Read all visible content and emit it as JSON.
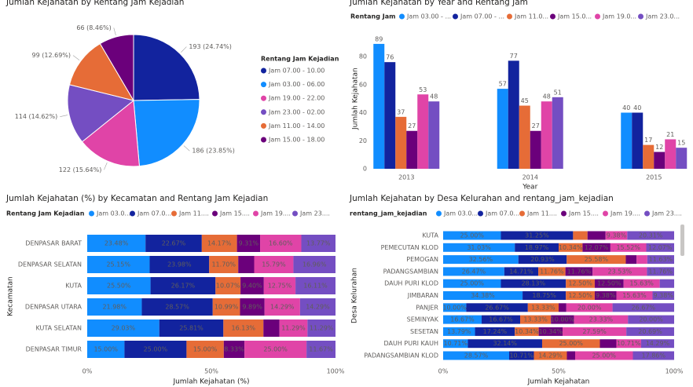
{
  "chart_data": [
    {
      "type": "pie",
      "title": "Jumlah Kejahatan by Rentang Jam Kejadian",
      "legend_title": "Rentang Jam Kejadian",
      "categories": [
        "Jam 07.00 - 10.00",
        "Jam 03.00 - 06.00",
        "Jam 19.00 - 22.00",
        "Jam 23.00 - 02.00",
        "Jam 11.00 - 14.00",
        "Jam 15.00 - 18.00"
      ],
      "values": [
        193,
        186,
        122,
        114,
        99,
        66
      ],
      "value_labels": [
        "193 (24.74%)",
        "186 (23.85%)",
        "122 (15.64%)",
        "114 (14.62%)",
        "99 (12.69%)",
        "66 (8.46%)"
      ],
      "colors": [
        "#12239e",
        "#118dff",
        "#e044a7",
        "#744ec2",
        "#e66c37",
        "#6b007b"
      ],
      "legend": "right"
    },
    {
      "type": "bar",
      "title": "Jumlah Kejahatan by Year and Rentang Jam",
      "legend_title": "Rentang Jam",
      "x_label": "Year",
      "y_label": "Jumlah Kejahatan",
      "categories": [
        "2013",
        "2014",
        "2015"
      ],
      "series": [
        {
          "name": "Jam 03.00 - ...",
          "color": "#118dff",
          "values": [
            89,
            57,
            40
          ]
        },
        {
          "name": "Jam 07.00 - ...",
          "color": "#12239e",
          "values": [
            76,
            77,
            40
          ]
        },
        {
          "name": "Jam 11.0...",
          "color": "#e66c37",
          "values": [
            37,
            45,
            17
          ]
        },
        {
          "name": "Jam 15.0...",
          "color": "#6b007b",
          "values": [
            27,
            27,
            12
          ]
        },
        {
          "name": "Jam 19.0...",
          "color": "#e044a7",
          "values": [
            53,
            48,
            21
          ]
        },
        {
          "name": "Jam 23.0...",
          "color": "#744ec2",
          "values": [
            48,
            51,
            15
          ]
        }
      ],
      "ylim": [
        0,
        100
      ],
      "yticks": [
        0,
        20,
        40,
        60,
        80
      ],
      "legend": "top"
    },
    {
      "type": "stacked_bar",
      "title": "Jumlah Kejahatan (%) by Kecamatan and Rentang Jam Kejadian",
      "legend_title": "Rentang Jam Kejadian",
      "x_label": "Jumlah Kejahatan (%)",
      "y_label": "Kecamatan",
      "categories": [
        "DENPASAR BARAT",
        "DENPASAR SELATAN",
        "KUTA",
        "DENPASAR UTARA",
        "KUTA SELATAN",
        "DENPASAR TIMUR"
      ],
      "series": [
        {
          "name": "Jam 03.0...",
          "color": "#118dff",
          "values": [
            23.48,
            25.15,
            25.5,
            21.98,
            29.03,
            15.0
          ],
          "value_labels": [
            "23.48%",
            "25.15%",
            "25.50%",
            "21.98%",
            "29.03%",
            "15.00%"
          ]
        },
        {
          "name": "Jam 07.0...",
          "color": "#12239e",
          "values": [
            22.67,
            23.98,
            26.17,
            28.57,
            25.81,
            25.0
          ],
          "value_labels": [
            "22.67%",
            "23.98%",
            "26.17%",
            "28.57%",
            "25.81%",
            "25.00%"
          ]
        },
        {
          "name": "Jam 11....",
          "color": "#e66c37",
          "values": [
            14.17,
            11.7,
            10.07,
            10.99,
            16.13,
            15.0
          ],
          "value_labels": [
            "14.17%",
            "11.70%",
            "10.07%",
            "10.99%",
            "16.13%",
            "15.00%"
          ]
        },
        {
          "name": "Jam 15....",
          "color": "#6b007b",
          "values": [
            9.31,
            6.42,
            9.4,
            9.89,
            6.45,
            8.33
          ],
          "value_labels": [
            "9.31%",
            null,
            "9.40%",
            "9.89%",
            null,
            "8.33%"
          ]
        },
        {
          "name": "Jam 19....",
          "color": "#e044a7",
          "values": [
            16.6,
            15.79,
            12.75,
            14.29,
            11.29,
            25.0
          ],
          "value_labels": [
            "16.60%",
            "15.79%",
            "12.75%",
            "14.29%",
            "11.29%",
            "25.00%"
          ]
        },
        {
          "name": "Jam 23....",
          "color": "#744ec2",
          "values": [
            13.77,
            16.96,
            16.11,
            14.29,
            11.29,
            11.67
          ],
          "value_labels": [
            "13.77%",
            "16.96%",
            "16.11%",
            "14.29%",
            "11.29%",
            "11.67%"
          ]
        }
      ],
      "xlim": [
        0,
        100
      ],
      "xticks": [
        {
          "value": 0,
          "label": "0%"
        },
        {
          "value": 50,
          "label": "50%"
        },
        {
          "value": 100,
          "label": "100%"
        }
      ],
      "legend": "top"
    },
    {
      "type": "stacked_bar",
      "title": "Jumlah Kejahatan by Desa Kelurahan and rentang_jam_kejadian",
      "legend_title": "rentang_jam_kejadian",
      "x_label": "Jumlah Kejahatan",
      "y_label": "Desa Kelurahan",
      "categories": [
        "KUTA",
        "PEMECUTAN KLOD",
        "PEMOGAN",
        "PADANGSAMBIAN",
        "DAUH PURI KLOD",
        "JIMBARAN",
        "PANJER",
        "SEMINYAK",
        "SESETAN",
        "DAUH PURI KAUH",
        "PADANGSAMBIAN KLOD"
      ],
      "series": [
        {
          "name": "Jam 03.0...",
          "color": "#118dff",
          "values": [
            25.0,
            31.03,
            32.56,
            26.47,
            25.0,
            34.38,
            10.0,
            16.67,
            13.79,
            10.71,
            28.57
          ],
          "value_labels": [
            "25.00%",
            "31.03%",
            "32.56%",
            "26.47%",
            "25.00%",
            "34.38%",
            "10.00%",
            "16.67%",
            "13.79%",
            "10.71%",
            "28.57%"
          ]
        },
        {
          "name": "Jam 07.0...",
          "color": "#12239e",
          "values": [
            31.25,
            18.97,
            20.93,
            14.71,
            28.13,
            18.75,
            26.67,
            16.67,
            17.24,
            32.14,
            10.71
          ],
          "value_labels": [
            "31.25%",
            "18.97%",
            "20.93%",
            "14.71%",
            "28.13%",
            "18.75%",
            "26.67%",
            "16.67%",
            "17.24%",
            "32.14%",
            "10.71%"
          ]
        },
        {
          "name": "Jam 11....",
          "color": "#e66c37",
          "values": [
            6.25,
            10.34,
            25.58,
            11.76,
            12.5,
            12.5,
            13.33,
            13.33,
            10.34,
            25.0,
            14.29
          ],
          "value_labels": [
            null,
            "10.34%",
            "25.58%",
            "11.76%",
            "12.50%",
            "12.50%",
            "13.33%",
            "13.33%",
            "10.34%",
            "25.00%",
            "14.29%"
          ]
        },
        {
          "name": "Jam 15....",
          "color": "#6b007b",
          "values": [
            7.81,
            12.07,
            4.65,
            11.76,
            12.5,
            9.38,
            3.33,
            10.0,
            10.34,
            7.14,
            3.57
          ],
          "value_labels": [
            null,
            "12.07%",
            null,
            "11.76%",
            "12.50%",
            "9.38%",
            null,
            "10.00%",
            "10.34%",
            null,
            null
          ]
        },
        {
          "name": "Jam 19....",
          "color": "#e044a7",
          "values": [
            9.38,
            15.52,
            4.65,
            23.53,
            15.63,
            15.63,
            20.0,
            23.33,
            27.59,
            10.71,
            25.0
          ],
          "value_labels": [
            "9.38%",
            "15.52%",
            null,
            "23.53%",
            "15.63%",
            "15.63%",
            "20.00%",
            "23.33%",
            "27.59%",
            "10.71%",
            "25.00%"
          ]
        },
        {
          "name": "Jam 23....",
          "color": "#744ec2",
          "values": [
            20.31,
            12.07,
            11.63,
            11.76,
            6.25,
            9.38,
            26.67,
            20.0,
            20.69,
            14.29,
            17.86
          ],
          "value_labels": [
            "20.31%",
            "12.07%",
            "11.63%",
            "11.76%",
            null,
            "9.38%",
            "26.67%",
            "20.00%",
            "20.69%",
            "14.29%",
            "17.86%"
          ]
        }
      ],
      "xlim": [
        0,
        100
      ],
      "xticks": [
        {
          "value": 0,
          "label": "0%"
        },
        {
          "value": 50,
          "label": "50%"
        },
        {
          "value": 100,
          "label": "100%"
        }
      ],
      "legend": "top"
    }
  ]
}
